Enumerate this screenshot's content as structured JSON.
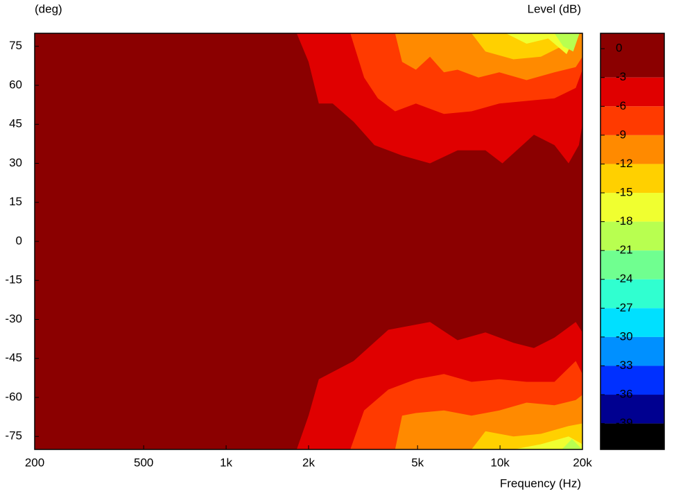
{
  "chart_data": {
    "type": "contour",
    "y_label": "(deg)",
    "colorbar_label": "Level  (dB)",
    "x_label": "Frequency  (Hz)",
    "log_x": true,
    "xlim": [
      200,
      20000
    ],
    "xticks": [
      200,
      500,
      {
        "value": 1000,
        "label": "1k"
      },
      {
        "value": 2000,
        "label": "2k"
      },
      {
        "value": 5000,
        "label": "5k"
      },
      {
        "value": 10000,
        "label": "10k"
      },
      {
        "value": 20000,
        "label": "20k"
      }
    ],
    "ylim": [
      -80,
      80
    ],
    "yticks": [
      75,
      60,
      45,
      30,
      15,
      0,
      -15,
      -30,
      -45,
      -60,
      -75
    ],
    "colorbar_lim": [
      -41.7,
      1.6
    ],
    "levels": [
      0,
      -3,
      -6,
      -9,
      -12,
      -15,
      -18,
      -21,
      -24,
      -27,
      -30,
      -33,
      -36,
      -39
    ],
    "level_colors": [
      "#8b0000",
      "#e00000",
      "#ff3a00",
      "#ff8a00",
      "#ffd000",
      "#f0ff30",
      "#b8ff50",
      "#70ff90",
      "#30ffd0",
      "#00e0ff",
      "#0090ff",
      "#0030ff",
      "#000090",
      "#000000"
    ],
    "contours": [
      {
        "level": -3,
        "upper": {
          "x": [
            1810,
            2000,
            2180,
            2450,
            2920,
            3480,
            4390,
            5550,
            7000,
            8850,
            10200,
            13300,
            15800,
            17800,
            19400,
            20000
          ],
          "y": [
            80,
            69,
            53,
            53,
            46,
            37,
            33,
            30,
            35,
            35,
            30,
            41,
            37,
            30,
            37,
            45
          ]
        },
        "lower": {
          "x": [
            1810,
            2000,
            2180,
            2920,
            3910,
            5550,
            7000,
            8850,
            11200,
            13300,
            15800,
            18900,
            20000
          ],
          "y": [
            -80,
            -67,
            -53,
            -46,
            -34,
            -31,
            -38,
            -35,
            -39,
            -41,
            -37,
            -31,
            -35
          ]
        }
      },
      {
        "level": -6,
        "upper": {
          "x": [
            2840,
            3190,
            3580,
            4140,
            4930,
            6240,
            7870,
            9940,
            12500,
            15800,
            18900,
            20000
          ],
          "y": [
            80,
            63,
            55,
            50,
            53,
            49,
            50,
            53,
            54,
            55,
            59,
            66
          ]
        },
        "lower": {
          "x": [
            2840,
            3190,
            3910,
            4930,
            6240,
            7870,
            9940,
            12500,
            15800,
            18900,
            20000
          ],
          "y": [
            -80,
            -65,
            -57,
            -53,
            -51,
            -54,
            -53,
            -54,
            -54,
            -46,
            -51
          ]
        }
      },
      {
        "level": -9,
        "upper": {
          "x": [
            4140,
            4390,
            4930,
            5550,
            6240,
            7000,
            8340,
            9940,
            12500,
            15800,
            18900,
            20000
          ],
          "y": [
            80,
            69,
            66,
            71,
            65,
            66,
            63,
            65,
            62,
            65,
            67,
            71
          ]
        },
        "lower": {
          "x": [
            4140,
            4390,
            4930,
            6240,
            7870,
            9940,
            12500,
            15800,
            18900,
            20000
          ],
          "y": [
            -80,
            -67,
            -66,
            -65,
            -67,
            -65,
            -62,
            -63,
            -61,
            -59
          ]
        }
      },
      {
        "level": -12,
        "upper": {
          "x": [
            7870,
            8850,
            11200,
            14100,
            16800,
            17800
          ],
          "y": [
            80,
            73,
            70,
            71,
            75,
            80
          ]
        },
        "lower": {
          "x": [
            7870,
            8850,
            11200,
            14100,
            17800,
            20000
          ],
          "y": [
            -80,
            -73,
            -75,
            -74,
            -71,
            -70
          ]
        }
      },
      {
        "level": -15,
        "upper": {
          "x": [
            10500,
            12500,
            15000,
            17500,
            19000
          ],
          "y": [
            80,
            76,
            78,
            72,
            80
          ]
        },
        "lower": {
          "x": [
            11200,
            14100,
            17800,
            20000
          ],
          "y": [
            -80,
            -78,
            -75,
            -78
          ]
        }
      },
      {
        "level": -18,
        "upper": {
          "x": [
            15800,
            17000,
            18500,
            19500
          ],
          "y": [
            80,
            75,
            73,
            80
          ]
        },
        "lower": {
          "x": [
            16800,
            18300,
            20000
          ],
          "y": [
            -80,
            -76,
            -80
          ]
        }
      }
    ]
  }
}
